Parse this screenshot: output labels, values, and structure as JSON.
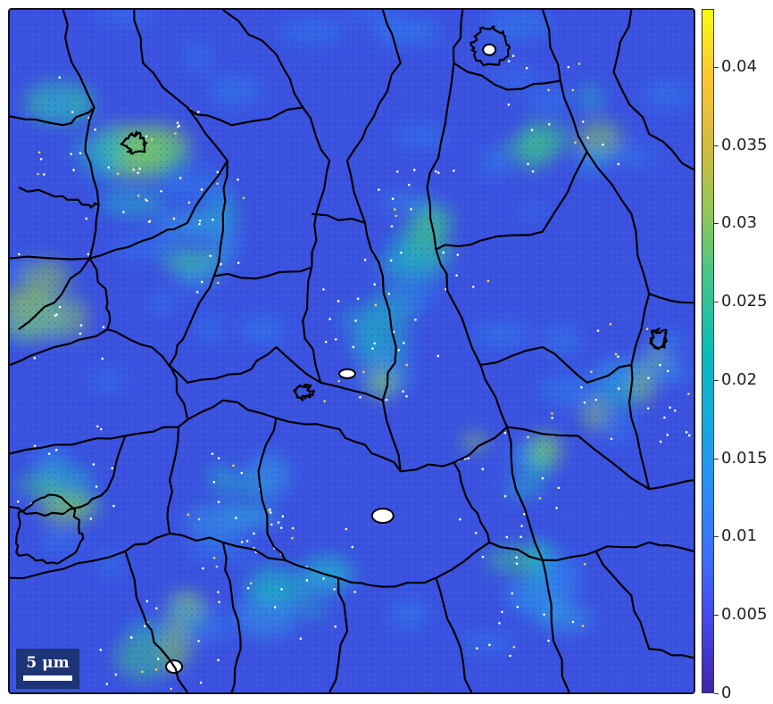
{
  "scalebar": {
    "label": "5 μm"
  },
  "colorbar": {
    "min": 0,
    "max": 0.0437,
    "colormap": "parula",
    "ticks": [
      {
        "value": 0.04,
        "label": "0.04"
      },
      {
        "value": 0.035,
        "label": "0.035"
      },
      {
        "value": 0.03,
        "label": "0.03"
      },
      {
        "value": 0.025,
        "label": "0.025"
      },
      {
        "value": 0.02,
        "label": "0.02"
      },
      {
        "value": 0.015,
        "label": "0.015"
      },
      {
        "value": 0.01,
        "label": "0.01"
      },
      {
        "value": 0.005,
        "label": "0.005"
      },
      {
        "value": 0,
        "label": "0"
      }
    ]
  },
  "colors": {
    "low": "#3b3fd8",
    "mid": "#2f7df0",
    "high_cyan": "#17b4c8",
    "high_yellow": "#f0d040",
    "boundary": "#000000",
    "unindexed": "#ffffff"
  }
}
